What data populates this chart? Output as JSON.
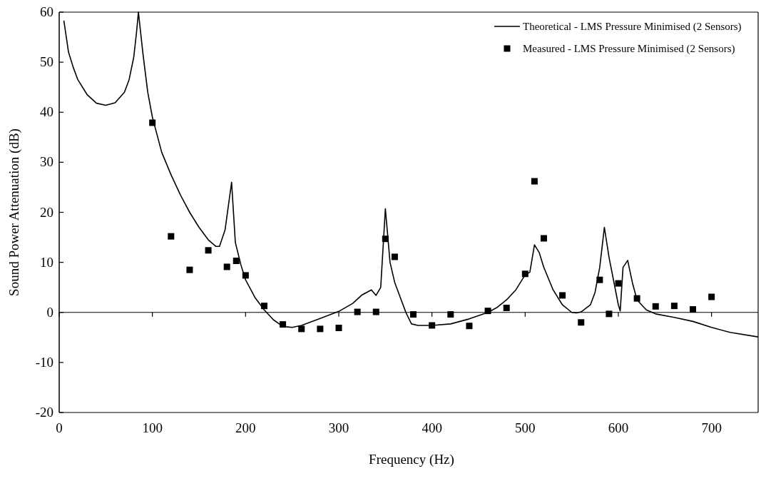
{
  "chart_data": {
    "type": "line",
    "xlabel": "Frequency (Hz)",
    "ylabel": "Sound Power Attenuation (dB)",
    "xlim": [
      0,
      750
    ],
    "ylim": [
      -20,
      60
    ],
    "xticks": [
      0,
      100,
      200,
      300,
      400,
      500,
      600,
      700
    ],
    "yticks": [
      -20,
      -10,
      0,
      10,
      20,
      30,
      40,
      50,
      60
    ],
    "legend": "top right",
    "grid": false,
    "ref_lines": [
      {
        "axis": "y",
        "value": 0
      }
    ],
    "series": [
      {
        "name": "Theoretical - LMS Pressure Minimised (2 Sensors)",
        "color": "#000000",
        "marker": "none",
        "line_style": "solid",
        "x": [
          5,
          10,
          15,
          20,
          30,
          40,
          50,
          60,
          70,
          75,
          80,
          83,
          85,
          90,
          95,
          100,
          110,
          120,
          130,
          140,
          150,
          160,
          168,
          172,
          178,
          185,
          189,
          195,
          200,
          210,
          220,
          230,
          240,
          250,
          260,
          280,
          300,
          315,
          325,
          335,
          340,
          345,
          350,
          355,
          360,
          365,
          372,
          378,
          385,
          400,
          420,
          440,
          460,
          470,
          480,
          490,
          500,
          505,
          510,
          515,
          520,
          530,
          540,
          550,
          555,
          560,
          570,
          575,
          580,
          585,
          590,
          600,
          602,
          605,
          610,
          615,
          620,
          630,
          640,
          660,
          680,
          700,
          720,
          750
        ],
        "values": [
          58.3,
          52,
          49,
          46.5,
          43.5,
          41.8,
          41.4,
          41.9,
          44,
          46.5,
          51,
          56,
          60,
          51.5,
          44,
          39,
          32,
          27.5,
          23.5,
          20,
          17,
          14.5,
          13.2,
          13.2,
          16.5,
          26,
          14,
          9.5,
          6.5,
          3,
          0.5,
          -1.5,
          -2.8,
          -3,
          -2.6,
          -1.2,
          0.2,
          1.8,
          3.5,
          4.5,
          3.4,
          5,
          20.7,
          10,
          6,
          3.5,
          0,
          -2.3,
          -2.6,
          -2.6,
          -2.3,
          -1.3,
          0,
          1,
          2.5,
          4.5,
          7.5,
          8,
          13.5,
          12,
          9,
          4.5,
          1.5,
          0,
          -0.1,
          0.1,
          1.5,
          4,
          9,
          17,
          11,
          1.5,
          0.3,
          9,
          10.4,
          6,
          2.5,
          0.5,
          -0.3,
          -1,
          -1.8,
          -3,
          -4,
          -4.9
        ]
      },
      {
        "name": "Measured - LMS Pressure Minimised (2 Sensors)",
        "type": "scatter",
        "color": "#000000",
        "marker": "square",
        "x": [
          100,
          120,
          140,
          160,
          180,
          190,
          200,
          220,
          240,
          260,
          280,
          300,
          320,
          340,
          350,
          360,
          380,
          400,
          420,
          440,
          460,
          480,
          500,
          510,
          520,
          540,
          560,
          580,
          590,
          600,
          620,
          640,
          660,
          680,
          700
        ],
        "values": [
          37.9,
          15.2,
          8.5,
          12.4,
          9.1,
          10.3,
          7.4,
          1.3,
          -2.4,
          -3.3,
          -3.3,
          -3.1,
          0.1,
          0.1,
          14.7,
          11.1,
          -0.4,
          -2.6,
          -0.4,
          -2.7,
          0.3,
          0.9,
          7.7,
          26.2,
          14.8,
          3.4,
          -2,
          6.5,
          -0.3,
          5.8,
          2.8,
          1.2,
          1.3,
          0.6,
          3.1
        ]
      }
    ]
  }
}
